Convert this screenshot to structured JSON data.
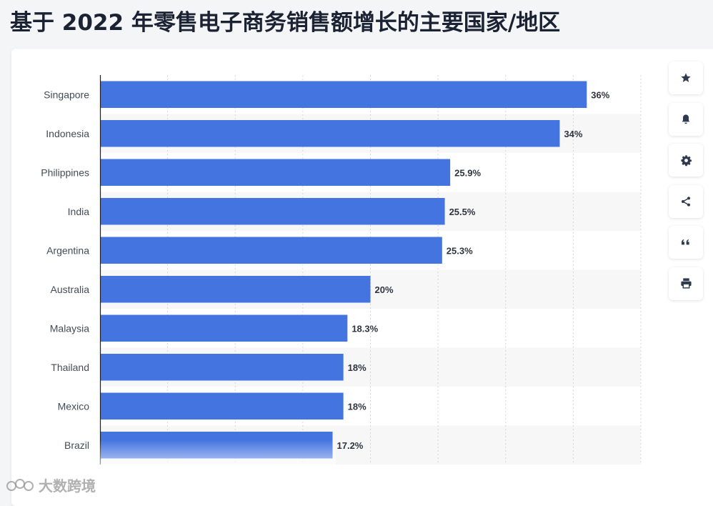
{
  "page": {
    "title": "基于 2022 年零售电子商务销售额增长的主要国家/地区"
  },
  "toolbar": {
    "buttons": [
      {
        "icon": "star-icon"
      },
      {
        "icon": "bell-icon"
      },
      {
        "icon": "gear-icon"
      },
      {
        "icon": "share-icon"
      },
      {
        "icon": "quote-icon"
      },
      {
        "icon": "print-icon"
      }
    ]
  },
  "watermark": {
    "text": "大数跨境"
  },
  "colors": {
    "bar": "#4474e0",
    "stripe": "#f7f7f8",
    "axis": "#222222",
    "grid": "#d3d6db"
  },
  "chart_data": {
    "type": "bar",
    "orientation": "horizontal",
    "categories": [
      "Singapore",
      "Indonesia",
      "Philippines",
      "India",
      "Argentina",
      "Australia",
      "Malaysia",
      "Thailand",
      "Mexico",
      "Brazil"
    ],
    "values": [
      36,
      34,
      25.9,
      25.5,
      25.3,
      20,
      18.3,
      18,
      18,
      17.2
    ],
    "value_labels": [
      "36%",
      "34%",
      "25.9%",
      "25.5%",
      "25.3%",
      "20%",
      "18.3%",
      "18%",
      "18%",
      "17.2%"
    ],
    "unit": "%",
    "xlim": [
      0,
      40
    ],
    "grid": true,
    "title": "",
    "xlabel": "",
    "ylabel": ""
  }
}
